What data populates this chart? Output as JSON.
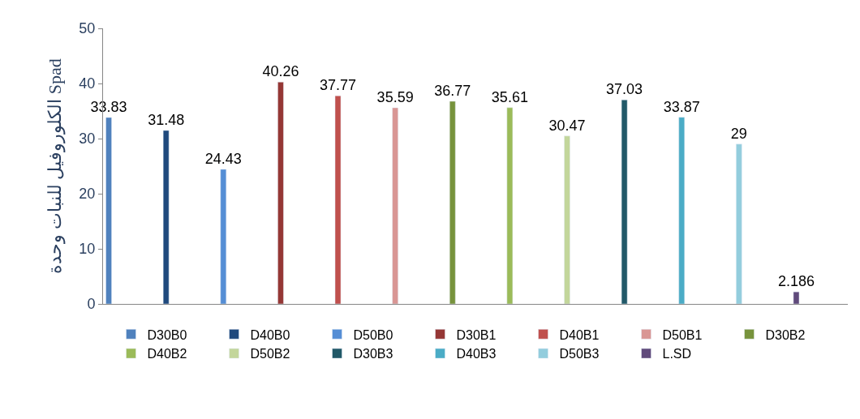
{
  "chart_data": {
    "type": "bar",
    "ylabel": "الكلوروفيل للنبات وحدة Spad",
    "categories": [
      null,
      null,
      null,
      null,
      null,
      null,
      null,
      null,
      null,
      null,
      null,
      null,
      null
    ],
    "series": [
      {
        "name": "D30B0",
        "color": "#4f81bd",
        "values": [
          33.83,
          null,
          null,
          null,
          null,
          null,
          null,
          null,
          null,
          null,
          null,
          null,
          null
        ]
      },
      {
        "name": "D40B0",
        "color": "#1f497d",
        "values": [
          null,
          31.48,
          null,
          null,
          null,
          null,
          null,
          null,
          null,
          null,
          null,
          null,
          null
        ]
      },
      {
        "name": "D50B0",
        "color": "#558ed5",
        "values": [
          null,
          null,
          24.43,
          null,
          null,
          null,
          null,
          null,
          null,
          null,
          null,
          null,
          null
        ]
      },
      {
        "name": "D30B1",
        "color": "#953735",
        "values": [
          null,
          null,
          null,
          40.26,
          null,
          null,
          null,
          null,
          null,
          null,
          null,
          null,
          null
        ]
      },
      {
        "name": "D40B1",
        "color": "#c0504d",
        "values": [
          null,
          null,
          null,
          null,
          37.77,
          null,
          null,
          null,
          null,
          null,
          null,
          null,
          null
        ]
      },
      {
        "name": "D50B1",
        "color": "#d99694",
        "values": [
          null,
          null,
          null,
          null,
          null,
          35.59,
          null,
          null,
          null,
          null,
          null,
          null,
          null
        ]
      },
      {
        "name": "D30B2",
        "color": "#77933c",
        "values": [
          null,
          null,
          null,
          null,
          null,
          null,
          36.77,
          null,
          null,
          null,
          null,
          null,
          null
        ]
      },
      {
        "name": "D40B2",
        "color": "#9bbb59",
        "values": [
          null,
          null,
          null,
          null,
          null,
          null,
          null,
          35.61,
          null,
          null,
          null,
          null,
          null
        ]
      },
      {
        "name": "D50B2",
        "color": "#c3d69b",
        "values": [
          null,
          null,
          null,
          null,
          null,
          null,
          null,
          null,
          30.47,
          null,
          null,
          null,
          null
        ]
      },
      {
        "name": "D30B3",
        "color": "#215968",
        "values": [
          null,
          null,
          null,
          null,
          null,
          null,
          null,
          null,
          null,
          37.03,
          null,
          null,
          null
        ]
      },
      {
        "name": "D40B3",
        "color": "#4bacc6",
        "values": [
          null,
          null,
          null,
          null,
          null,
          null,
          null,
          null,
          null,
          null,
          33.87,
          null,
          null
        ]
      },
      {
        "name": "D50B3",
        "color": "#93cddd",
        "values": [
          null,
          null,
          null,
          null,
          null,
          null,
          null,
          null,
          null,
          null,
          null,
          29,
          null
        ]
      },
      {
        "name": "L.SD",
        "color": "#604a7b",
        "values": [
          null,
          null,
          null,
          null,
          null,
          null,
          null,
          null,
          null,
          null,
          null,
          null,
          2.186
        ]
      }
    ],
    "ylim": [
      0,
      50
    ],
    "yticks": [
      0,
      10,
      20,
      30,
      40,
      50
    ],
    "legend": "bottom",
    "data_labels": true,
    "tick_labels": "y"
  }
}
